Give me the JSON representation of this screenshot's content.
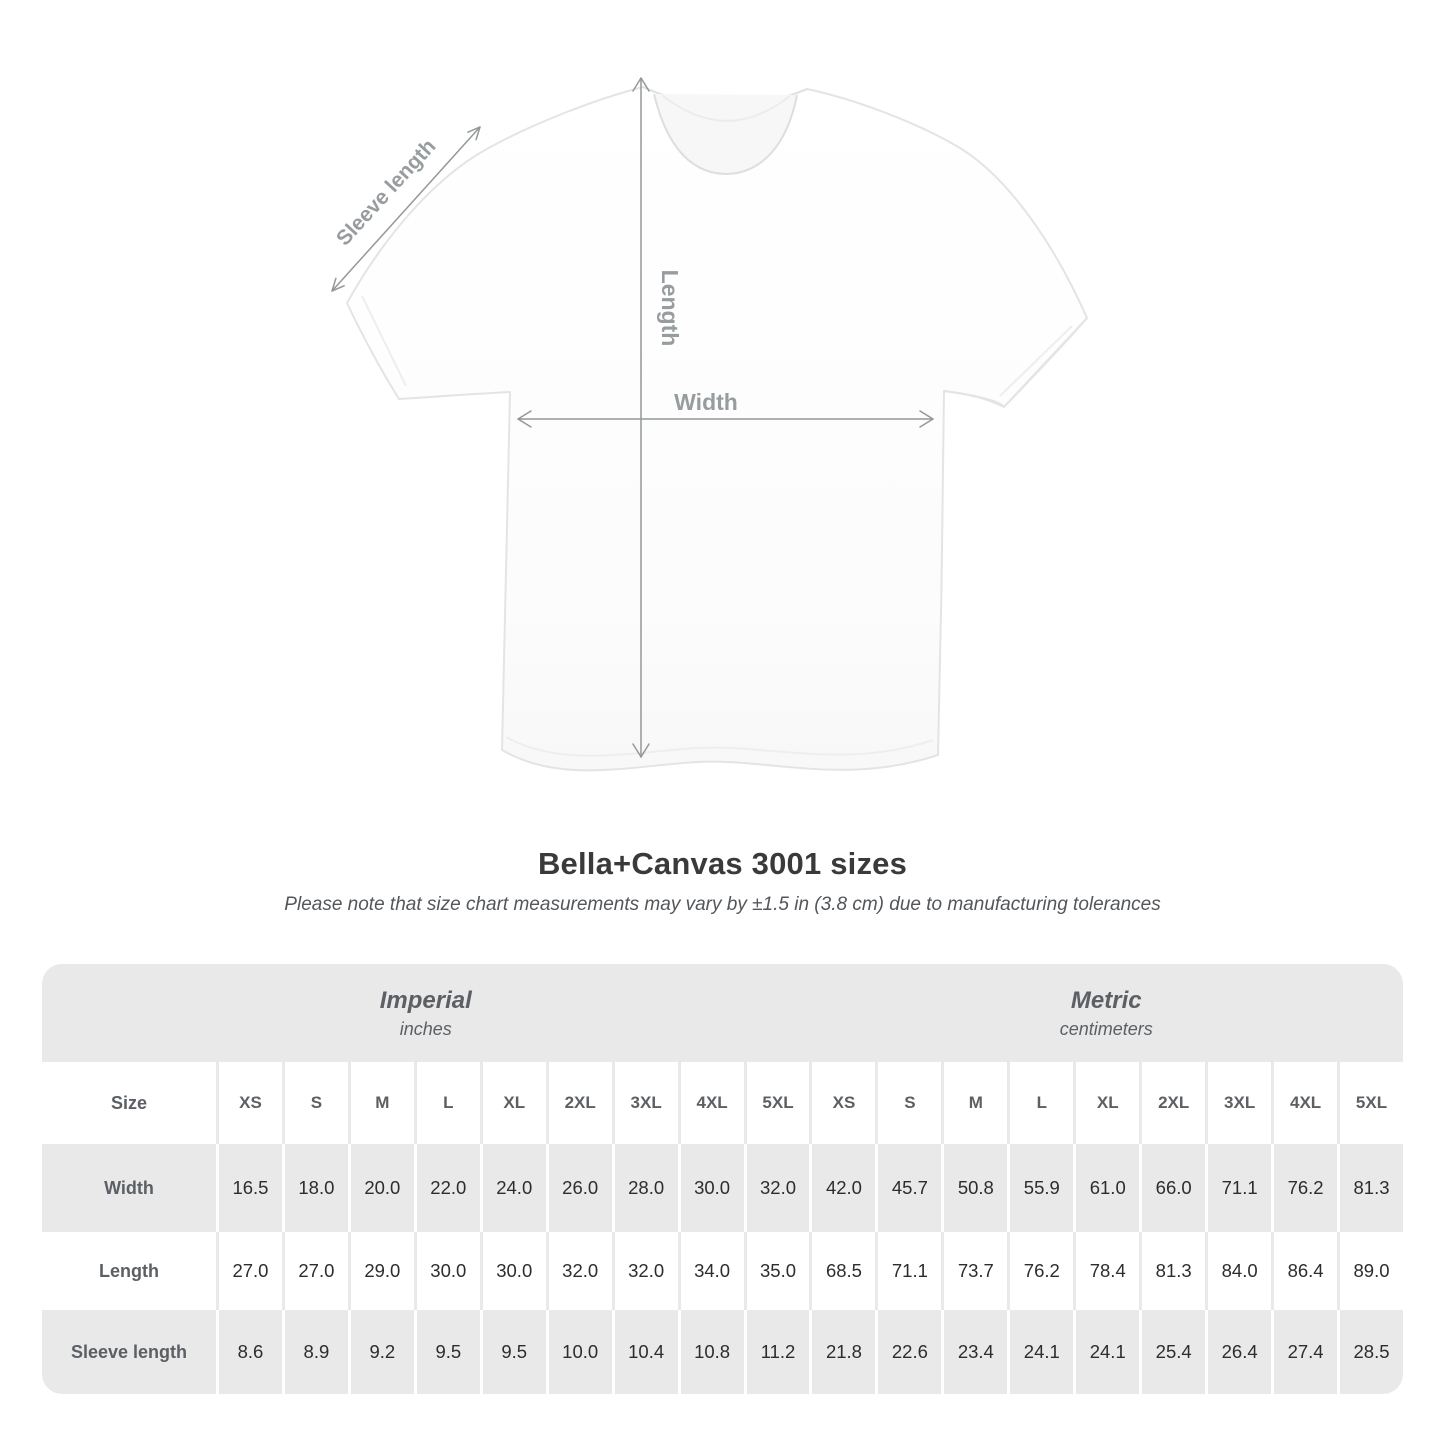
{
  "title": "Bella+Canvas 3001 sizes",
  "subtitle": "Please note that size chart measurements may vary by ±1.5 in (3.8 cm) due to manufacturing tolerances",
  "diagram": {
    "sleeve_label": "Sleeve length",
    "length_label": "Length",
    "width_label": "Width",
    "arrow_color": "#949899",
    "label_color": "#979c9f"
  },
  "table": {
    "size_label": "Size",
    "groups": [
      {
        "name": "Imperial",
        "unit": "inches"
      },
      {
        "name": "Metric",
        "unit": "centimeters"
      }
    ],
    "sizes": [
      "XS",
      "S",
      "M",
      "L",
      "XL",
      "2XL",
      "3XL",
      "4XL",
      "5XL"
    ],
    "rows": [
      {
        "label": "Width",
        "imperial": [
          "16.5",
          "18.0",
          "20.0",
          "22.0",
          "24.0",
          "26.0",
          "28.0",
          "30.0",
          "32.0"
        ],
        "metric": [
          "42.0",
          "45.7",
          "50.8",
          "55.9",
          "61.0",
          "66.0",
          "71.1",
          "76.2",
          "81.3"
        ]
      },
      {
        "label": "Length",
        "imperial": [
          "27.0",
          "27.0",
          "29.0",
          "30.0",
          "30.0",
          "32.0",
          "32.0",
          "34.0",
          "35.0"
        ],
        "metric": [
          "68.5",
          "71.1",
          "73.7",
          "76.2",
          "78.4",
          "81.3",
          "84.0",
          "86.4",
          "89.0"
        ]
      },
      {
        "label": "Sleeve length",
        "imperial": [
          "8.6",
          "8.9",
          "9.2",
          "9.5",
          "9.5",
          "10.0",
          "10.4",
          "10.8",
          "11.2"
        ],
        "metric": [
          "21.8",
          "22.6",
          "23.4",
          "24.1",
          "24.1",
          "25.4",
          "26.4",
          "27.4",
          "28.5"
        ]
      }
    ]
  },
  "chart_data": {
    "type": "table",
    "title": "Bella+Canvas 3001 sizes",
    "categories": [
      "XS",
      "S",
      "M",
      "L",
      "XL",
      "2XL",
      "3XL",
      "4XL",
      "5XL"
    ],
    "series": [
      {
        "name": "Width (inches)",
        "values": [
          16.5,
          18.0,
          20.0,
          22.0,
          24.0,
          26.0,
          28.0,
          30.0,
          32.0
        ]
      },
      {
        "name": "Length (inches)",
        "values": [
          27.0,
          27.0,
          29.0,
          30.0,
          30.0,
          32.0,
          32.0,
          34.0,
          35.0
        ]
      },
      {
        "name": "Sleeve length (inches)",
        "values": [
          8.6,
          8.9,
          9.2,
          9.5,
          9.5,
          10.0,
          10.4,
          10.8,
          11.2
        ]
      },
      {
        "name": "Width (cm)",
        "values": [
          42.0,
          45.7,
          50.8,
          55.9,
          61.0,
          66.0,
          71.1,
          76.2,
          81.3
        ]
      },
      {
        "name": "Length (cm)",
        "values": [
          68.5,
          71.1,
          73.7,
          76.2,
          78.4,
          81.3,
          84.0,
          86.4,
          89.0
        ]
      },
      {
        "name": "Sleeve length (cm)",
        "values": [
          21.8,
          22.6,
          23.4,
          24.1,
          24.1,
          25.4,
          26.4,
          27.4,
          28.5
        ]
      }
    ]
  }
}
